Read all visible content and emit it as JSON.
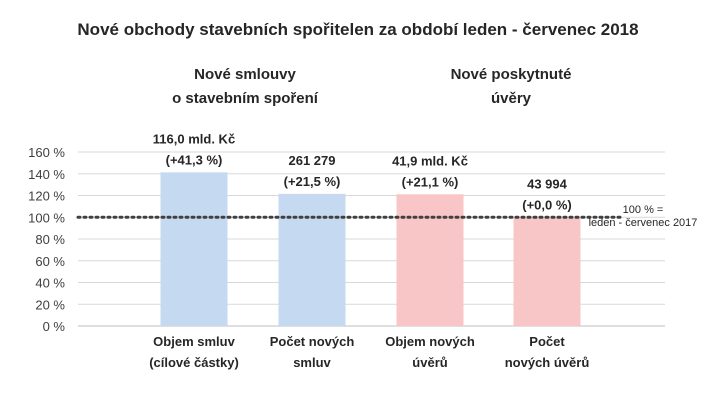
{
  "chart_data": {
    "type": "bar",
    "title": "Nové obchody stavebních spořitelen za období leden - červenec 2018",
    "group_titles": [
      [
        "Nové smlouvy",
        "o stavebním spoření"
      ],
      [
        "Nové poskytnuté",
        "úvěry"
      ]
    ],
    "categories": [
      [
        "Objem smluv",
        "(cílové částky)"
      ],
      [
        "Počet  nových",
        "smluv"
      ],
      [
        "Objem nových",
        "úvěrů"
      ],
      [
        "Počet",
        "nových úvěrů"
      ]
    ],
    "values": [
      141.3,
      121.5,
      121.1,
      100.0
    ],
    "data_labels": [
      [
        "116,0 mld. Kč",
        "(+41,3 %)"
      ],
      [
        "261 279",
        "(+21,5 %)"
      ],
      [
        "41,9 mld. Kč",
        "(+21,1 %)"
      ],
      [
        "43 994",
        "(+0,0 %)"
      ]
    ],
    "bar_colors": [
      "#c5d9f1",
      "#c5d9f1",
      "#f8c6c6",
      "#f8c6c6"
    ],
    "y_ticks": [
      "0 %",
      "20 %",
      "40 %",
      "60 %",
      "80 %",
      "100 %",
      "120 %",
      "140 %",
      "160 %"
    ],
    "ylim": [
      0,
      160
    ],
    "reference_line": {
      "value": 100,
      "label": [
        "100 % =",
        "leden - červenec 2017"
      ],
      "color": "#404040"
    },
    "grid": true,
    "grid_color": "#d9d9d9"
  }
}
